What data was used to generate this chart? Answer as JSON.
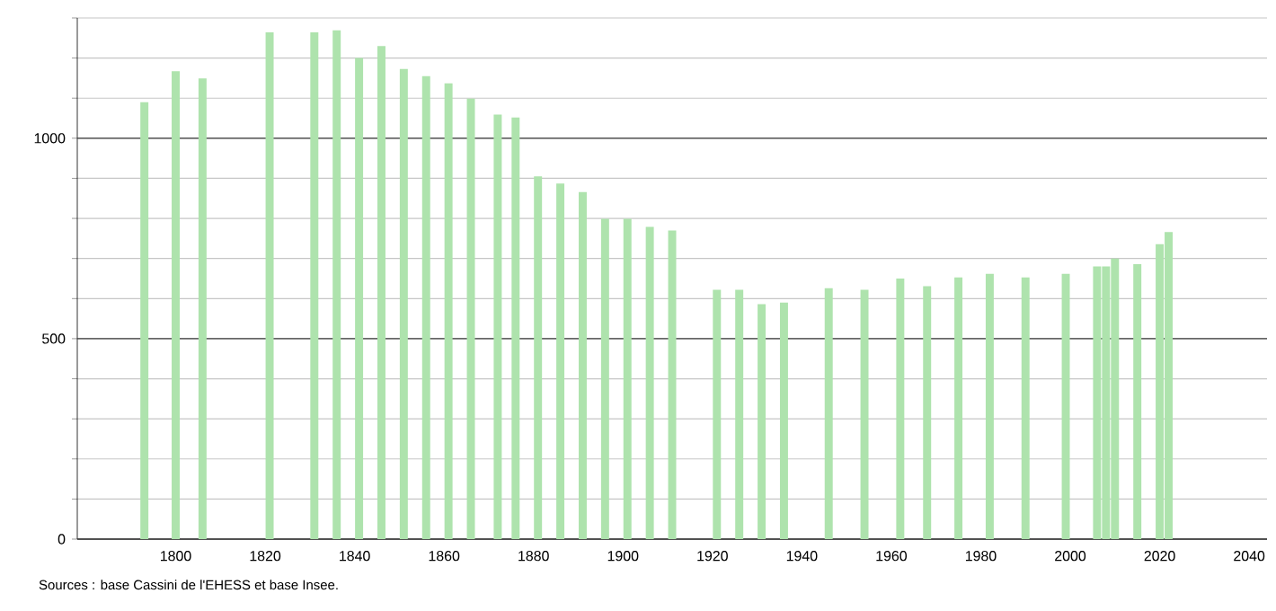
{
  "chart_data": {
    "type": "bar",
    "x": [
      1793,
      1800,
      1806,
      1821,
      1831,
      1836,
      1841,
      1846,
      1851,
      1856,
      1861,
      1866,
      1872,
      1876,
      1881,
      1886,
      1891,
      1896,
      1901,
      1906,
      1911,
      1921,
      1926,
      1931,
      1936,
      1946,
      1954,
      1962,
      1968,
      1975,
      1982,
      1990,
      1999,
      2006,
      2008,
      2010,
      2015,
      2020,
      2022
    ],
    "values": [
      1090,
      1167,
      1149,
      1264,
      1264,
      1269,
      1200,
      1230,
      1173,
      1155,
      1137,
      1099,
      1059,
      1052,
      905,
      887,
      866,
      799,
      799,
      779,
      770,
      622,
      622,
      586,
      590,
      626,
      622,
      650,
      631,
      653,
      662,
      653,
      662,
      680,
      680,
      700,
      686,
      736,
      766
    ],
    "color": "#aee3ad",
    "xlim": [
      1778,
      2044
    ],
    "xticks": [
      1800,
      1820,
      1840,
      1860,
      1880,
      1900,
      1920,
      1940,
      1960,
      1980,
      2000,
      2020,
      2040
    ],
    "ylim": [
      0,
      1300
    ],
    "yticks": [
      0,
      {
        "value": 100,
        "label": null
      },
      {
        "value": 200,
        "label": null
      },
      {
        "value": 300,
        "label": null
      },
      {
        "value": 400,
        "label": null
      },
      500,
      {
        "value": 600,
        "label": null
      },
      {
        "value": 700,
        "label": null
      },
      {
        "value": 800,
        "label": null
      },
      {
        "value": 900,
        "label": null
      },
      1000,
      {
        "value": 1100,
        "label": null
      },
      {
        "value": 1200,
        "label": null
      },
      {
        "value": 1300,
        "label": null
      }
    ],
    "grid": "y",
    "annotations": [
      "Sources : base Cassini de l'EHESS et base Insee."
    ]
  }
}
